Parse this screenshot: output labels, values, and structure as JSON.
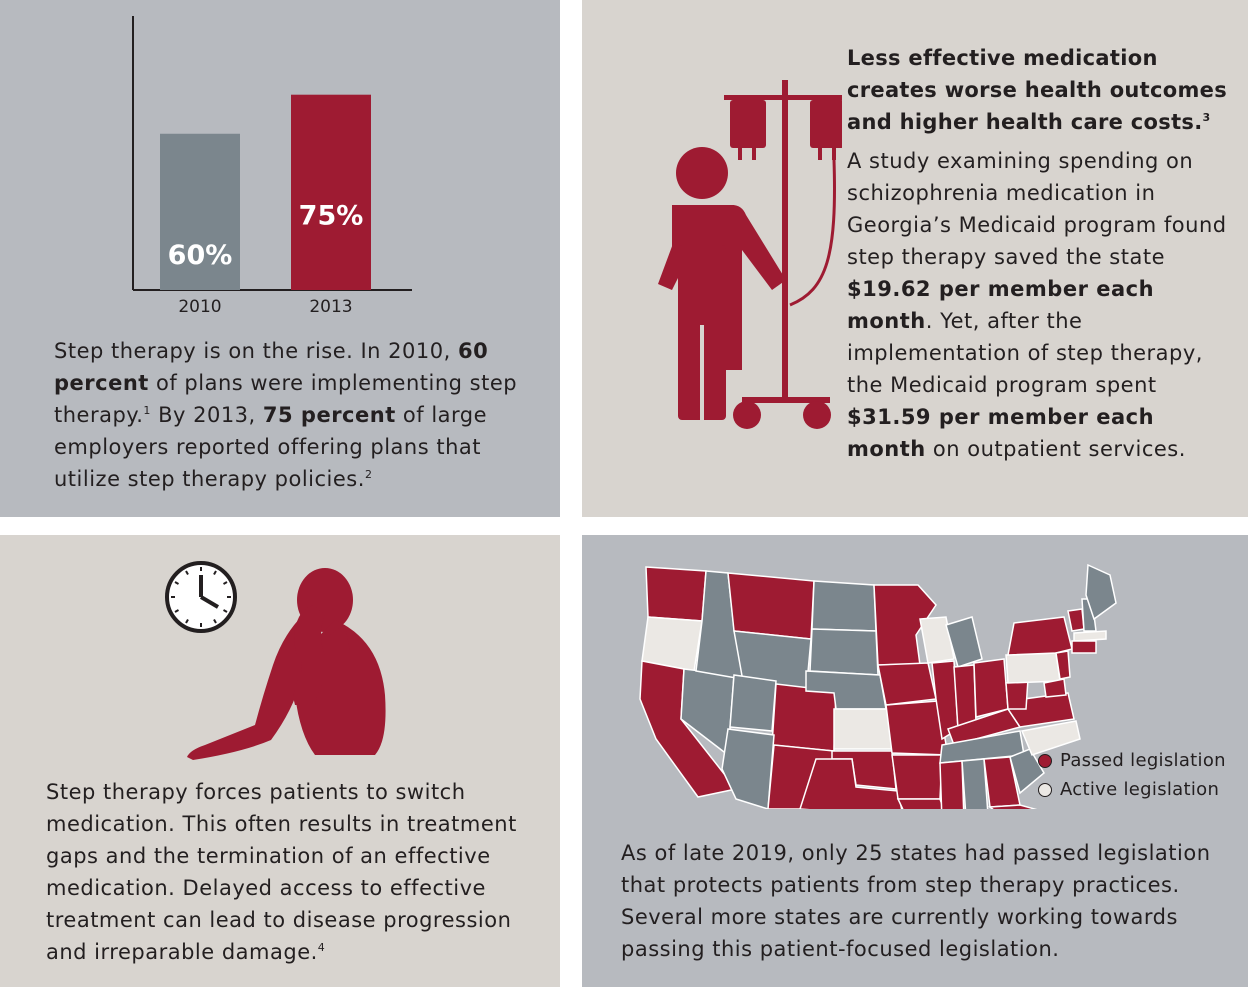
{
  "colors": {
    "accent": "#9e1b32",
    "gray_bar": "#7b868d",
    "dark_gray": "#7b868d",
    "light_panel": "#d8d4cf",
    "blue_panel": "#b7babf"
  },
  "chart_data": {
    "type": "bar",
    "categories": [
      "2010",
      "2013"
    ],
    "values": [
      60,
      75
    ],
    "value_labels": [
      "60%",
      "75%"
    ],
    "ylim": [
      0,
      100
    ]
  },
  "panel1": {
    "text_parts": [
      "Step therapy is on the rise. In 2010, ",
      "60 percent",
      " of plans were implementing step therapy.",
      "1",
      " By 2013, ",
      "75 percent",
      " of large employers reported offering plans that utilize step therapy policies.",
      "2"
    ],
    "icon": "bar-chart"
  },
  "panel2": {
    "heading": "Less effective medication creates worse health outcomes and higher health care costs.",
    "heading_sup": "3",
    "body_parts": [
      "A study examining spending on schizophrenia medication in Georgia’s Medicaid program found step therapy saved the state ",
      "$19.62 per member each month",
      ". Yet, after the implementation of step therapy, the Medicaid program spent ",
      "$31.59 per member each month",
      " on outpatient services."
    ],
    "icon": "patient-iv-icon"
  },
  "panel3": {
    "text": "Step therapy forces patients to switch medication. This often results in treatment gaps and the termination of an effective medication. Delayed access to effective treatment can lead to disease progression and irreparable damage.",
    "sup": "4",
    "icons": [
      "clock-icon",
      "distressed-person-icon"
    ]
  },
  "panel4": {
    "legend": [
      {
        "label": "Passed legislation",
        "color": "#9e1b32"
      },
      {
        "label": "Active legislation",
        "color": "#ebe8e4"
      }
    ],
    "text": "As of late 2019, only 25 states had passed legislation that protects patients from step therapy practices. Several more states are currently working towards passing this patient-focused legislation.",
    "icon": "us-map"
  }
}
